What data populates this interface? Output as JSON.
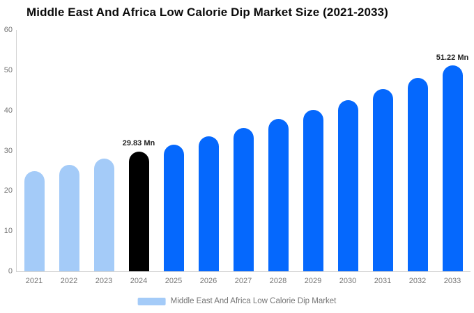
{
  "title": "Middle East And Africa Low Calorie Dip Market Size (2021-2033)",
  "chart_data": {
    "type": "bar",
    "title": "Middle East And Africa Low Calorie Dip Market Size (2021-2033)",
    "categories": [
      "2021",
      "2022",
      "2023",
      "2024",
      "2025",
      "2026",
      "2027",
      "2028",
      "2029",
      "2030",
      "2031",
      "2032",
      "2033"
    ],
    "values": [
      24.9,
      26.4,
      28.1,
      29.83,
      31.5,
      33.5,
      35.6,
      37.8,
      40.1,
      42.6,
      45.3,
      48.1,
      51.22
    ],
    "bar_colors": [
      "#a4cbf8",
      "#a4cbf8",
      "#a4cbf8",
      "#000000",
      "#0568fd",
      "#0568fd",
      "#0568fd",
      "#0568fd",
      "#0568fd",
      "#0568fd",
      "#0568fd",
      "#0568fd",
      "#0568fd"
    ],
    "xlabel": "",
    "ylabel": "",
    "ylim": [
      0,
      60
    ],
    "yticks": [
      0,
      10,
      20,
      30,
      40,
      50,
      60
    ],
    "grid": false,
    "annotations": [
      {
        "category": "2024",
        "text": "29.83 Mn"
      },
      {
        "category": "2033",
        "text": "51.22 Mn"
      }
    ],
    "legend": {
      "position": "bottom",
      "label": "Middle East And Africa Low Calorie Dip Market",
      "swatch_color": "#a4cbf8"
    }
  },
  "colors": {
    "background": "#ffffff",
    "axis_line": "#d4d4d4",
    "tick_text": "#757575",
    "title_text": "#0b0b0b",
    "annotation_text": "#222222",
    "bar_light_blue": "#a4cbf8",
    "bar_blue": "#0568fd",
    "bar_black": "#000000"
  }
}
